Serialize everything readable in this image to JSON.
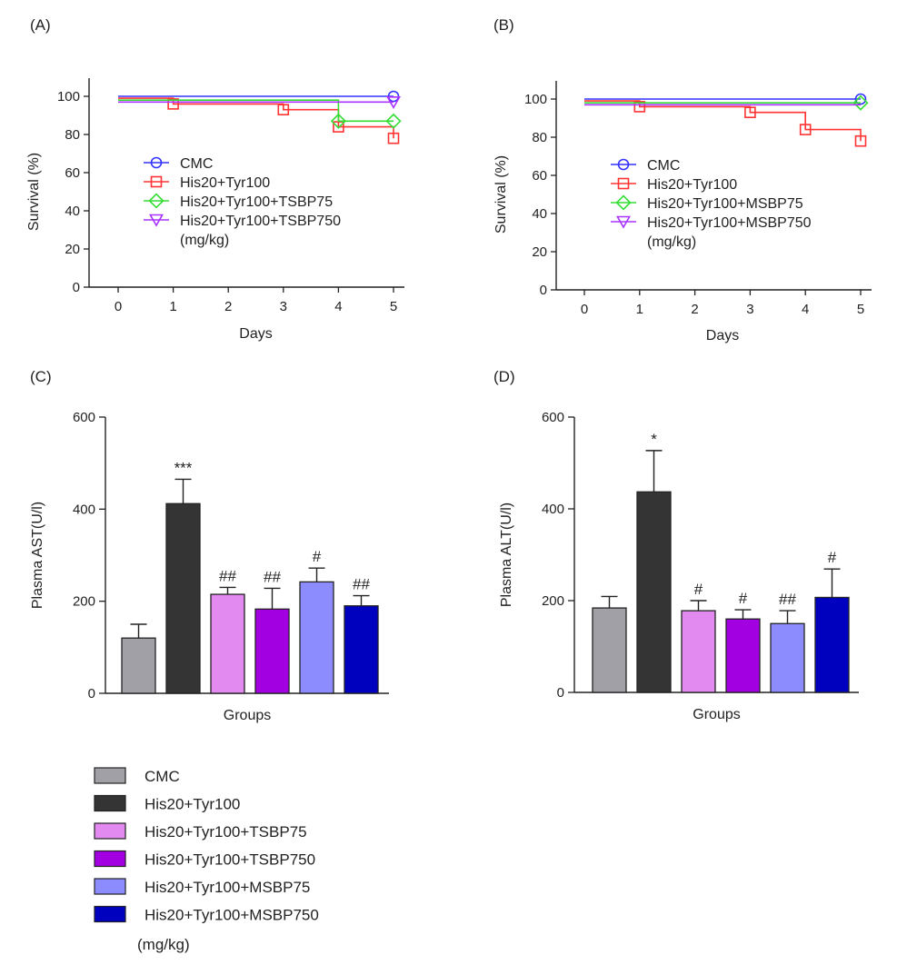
{
  "chart_data": [
    {
      "id": "A",
      "type": "line",
      "panel_label": "(A)",
      "xlabel": "Days",
      "ylabel": "Survival (%)",
      "xlim": [
        0,
        5
      ],
      "ylim": [
        0,
        100
      ],
      "xticks": [
        "0",
        "1",
        "2",
        "3",
        "4",
        "5"
      ],
      "yticks": [
        "0",
        "20",
        "40",
        "60",
        "80",
        "100"
      ],
      "series": [
        {
          "name": "CMC",
          "color": "#3333ff",
          "marker": "circle",
          "steps": [
            [
              0,
              100
            ],
            [
              5,
              100
            ]
          ],
          "markers": [
            [
              5,
              100
            ]
          ]
        },
        {
          "name": "His20+Tyr100",
          "color": "#ff3333",
          "marker": "square",
          "steps": [
            [
              0,
              99
            ],
            [
              1,
              99
            ],
            [
              1,
              96
            ],
            [
              3,
              96
            ],
            [
              3,
              93
            ],
            [
              4,
              93
            ],
            [
              4,
              84
            ],
            [
              5,
              84
            ],
            [
              5,
              78
            ]
          ],
          "markers": [
            [
              1,
              96
            ],
            [
              3,
              93
            ],
            [
              4,
              84
            ],
            [
              5,
              78
            ]
          ]
        },
        {
          "name": "His20+Tyr100+TSBP75",
          "color": "#33dd33",
          "marker": "diamond",
          "steps": [
            [
              0,
              98
            ],
            [
              4,
              98
            ],
            [
              4,
              87
            ],
            [
              5,
              87
            ]
          ],
          "markers": [
            [
              4,
              87
            ],
            [
              5,
              87
            ]
          ]
        },
        {
          "name": "His20+Tyr100+TSBP750",
          "color": "#aa33ff",
          "marker": "triangle-down",
          "steps": [
            [
              0,
              97
            ],
            [
              5,
              97
            ]
          ],
          "markers": [
            [
              5,
              97
            ]
          ]
        }
      ],
      "legend_unit": "(mg/kg)"
    },
    {
      "id": "B",
      "type": "line",
      "panel_label": "(B)",
      "xlabel": "Days",
      "ylabel": "Survival (%)",
      "xlim": [
        0,
        5
      ],
      "ylim": [
        0,
        100
      ],
      "xticks": [
        "0",
        "1",
        "2",
        "3",
        "4",
        "5"
      ],
      "yticks": [
        "0",
        "20",
        "40",
        "60",
        "80",
        "100"
      ],
      "series": [
        {
          "name": "CMC",
          "color": "#3333ff",
          "marker": "circle",
          "steps": [
            [
              0,
              100
            ],
            [
              5,
              100
            ]
          ],
          "markers": [
            [
              5,
              100
            ]
          ]
        },
        {
          "name": "His20+Tyr100",
          "color": "#ff3333",
          "marker": "square",
          "steps": [
            [
              0,
              99
            ],
            [
              1,
              99
            ],
            [
              1,
              96
            ],
            [
              3,
              96
            ],
            [
              3,
              93
            ],
            [
              4,
              93
            ],
            [
              4,
              84
            ],
            [
              5,
              84
            ],
            [
              5,
              78
            ]
          ],
          "markers": [
            [
              1,
              96
            ],
            [
              3,
              93
            ],
            [
              4,
              84
            ],
            [
              5,
              78
            ]
          ]
        },
        {
          "name": "His20+Tyr100+MSBP75",
          "color": "#33dd33",
          "marker": "diamond",
          "steps": [
            [
              0,
              98
            ],
            [
              5,
              98
            ]
          ],
          "markers": [
            [
              5,
              98
            ]
          ]
        },
        {
          "name": "His20+Tyr100+MSBP750",
          "color": "#aa33ff",
          "marker": "triangle-down",
          "steps": [
            [
              0,
              97
            ],
            [
              5,
              97
            ]
          ],
          "markers": []
        }
      ],
      "legend_unit": "(mg/kg)"
    },
    {
      "id": "C",
      "type": "bar",
      "panel_label": "(C)",
      "xlabel": "Groups",
      "ylabel": "Plasma  AST(U/l)",
      "ylim": [
        0,
        600
      ],
      "yticks": [
        "0",
        "200",
        "400",
        "600"
      ],
      "categories": [
        "CMC",
        "His20+Tyr100",
        "His20+Tyr100+TSBP75",
        "His20+Tyr100+TSBP750",
        "His20+Tyr100+MSBP75",
        "His20+Tyr100+MSBP750"
      ],
      "values": [
        120,
        412,
        215,
        183,
        242,
        190
      ],
      "errors": [
        30,
        53,
        15,
        45,
        30,
        22
      ],
      "annotations": [
        "",
        "***",
        "##",
        "##",
        "#",
        "##"
      ],
      "colors": [
        "#a0a0a6",
        "#343434",
        "#e28af0",
        "#a200e0",
        "#8c8cff",
        "#0000bf"
      ]
    },
    {
      "id": "D",
      "type": "bar",
      "panel_label": "(D)",
      "xlabel": "Groups",
      "ylabel": "Plasma  ALT(U/l)",
      "ylim": [
        0,
        600
      ],
      "yticks": [
        "0",
        "200",
        "400",
        "600"
      ],
      "categories": [
        "CMC",
        "His20+Tyr100",
        "His20+Tyr100+TSBP75",
        "His20+Tyr100+TSBP750",
        "His20+Tyr100+MSBP75",
        "His20+Tyr100+MSBP750"
      ],
      "values": [
        184,
        437,
        178,
        160,
        150,
        207
      ],
      "errors": [
        25,
        90,
        22,
        20,
        28,
        62
      ],
      "annotations": [
        "",
        "*",
        "#",
        "#",
        "##",
        "#"
      ],
      "colors": [
        "#a0a0a6",
        "#343434",
        "#e28af0",
        "#a200e0",
        "#8c8cff",
        "#0000bf"
      ]
    }
  ],
  "bar_legend": {
    "items": [
      {
        "name": "CMC",
        "color": "#a0a0a6"
      },
      {
        "name": "His20+Tyr100",
        "color": "#343434"
      },
      {
        "name": "His20+Tyr100+TSBP75",
        "color": "#e28af0"
      },
      {
        "name": "His20+Tyr100+TSBP750",
        "color": "#a200e0"
      },
      {
        "name": "His20+Tyr100+MSBP75",
        "color": "#8c8cff"
      },
      {
        "name": "His20+Tyr100+MSBP750",
        "color": "#0000bf"
      }
    ],
    "unit": "(mg/kg)"
  }
}
